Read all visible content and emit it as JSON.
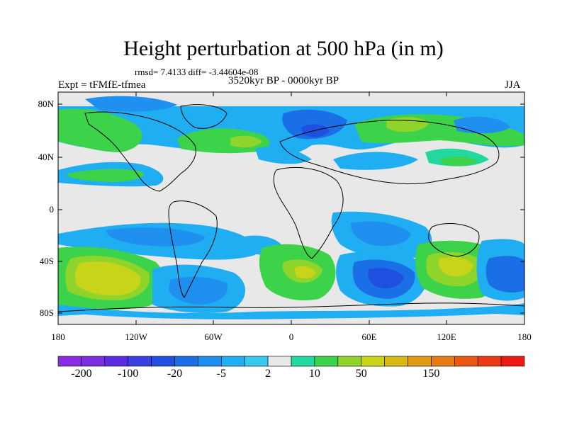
{
  "title": "Height perturbation at 500 hPa (in m)",
  "stats": "rmsd= 7.4133 diff= -3.44604e-08",
  "experiment": "Expt = tFMfE-tfmea",
  "period": "3520kyr BP - 0000kyr BP",
  "season": "JJA",
  "lat_ticks": [
    "80N",
    "40N",
    "0",
    "40S",
    "80S"
  ],
  "lon_ticks": [
    "180",
    "120W",
    "60W",
    "0",
    "60E",
    "120E",
    "180"
  ],
  "colorbar": {
    "colors": [
      "#8a2be2",
      "#7b2fe0",
      "#5a2ee0",
      "#3a3fe0",
      "#2050e0",
      "#1a6ee6",
      "#1f8ff0",
      "#20aef2",
      "#38c8ec",
      "#e8e8e8",
      "#22d7a0",
      "#3cd24a",
      "#8fd42a",
      "#c8d41a",
      "#d8b814",
      "#e09a14",
      "#e67a14",
      "#e85a14",
      "#ea3a14",
      "#ec1a14"
    ],
    "labels": [
      "-200",
      "-100",
      "-20",
      "-5",
      "2",
      "10",
      "50",
      "150"
    ]
  },
  "chart_data": {
    "type": "heatmap",
    "title": "Height perturbation at 500 hPa (in m)",
    "variable": "Height perturbation at 500 hPa",
    "units": "m",
    "season": "JJA",
    "experiment": "tFMfE-tfmea",
    "period": "3520kyr BP - 0000kyr BP",
    "rmsd": 7.4133,
    "diff": -3.44604e-08,
    "x_range": [
      -180,
      180
    ],
    "y_range": [
      -90,
      90
    ],
    "x_ticks": [
      "180",
      "120W",
      "60W",
      "0",
      "60E",
      "120E",
      "180"
    ],
    "y_ticks": [
      "80N",
      "40N",
      "0",
      "40S",
      "80S"
    ],
    "colorbar_labels": [
      "-200",
      "-100",
      "-20",
      "-5",
      "2",
      "10",
      "50",
      "150"
    ]
  }
}
